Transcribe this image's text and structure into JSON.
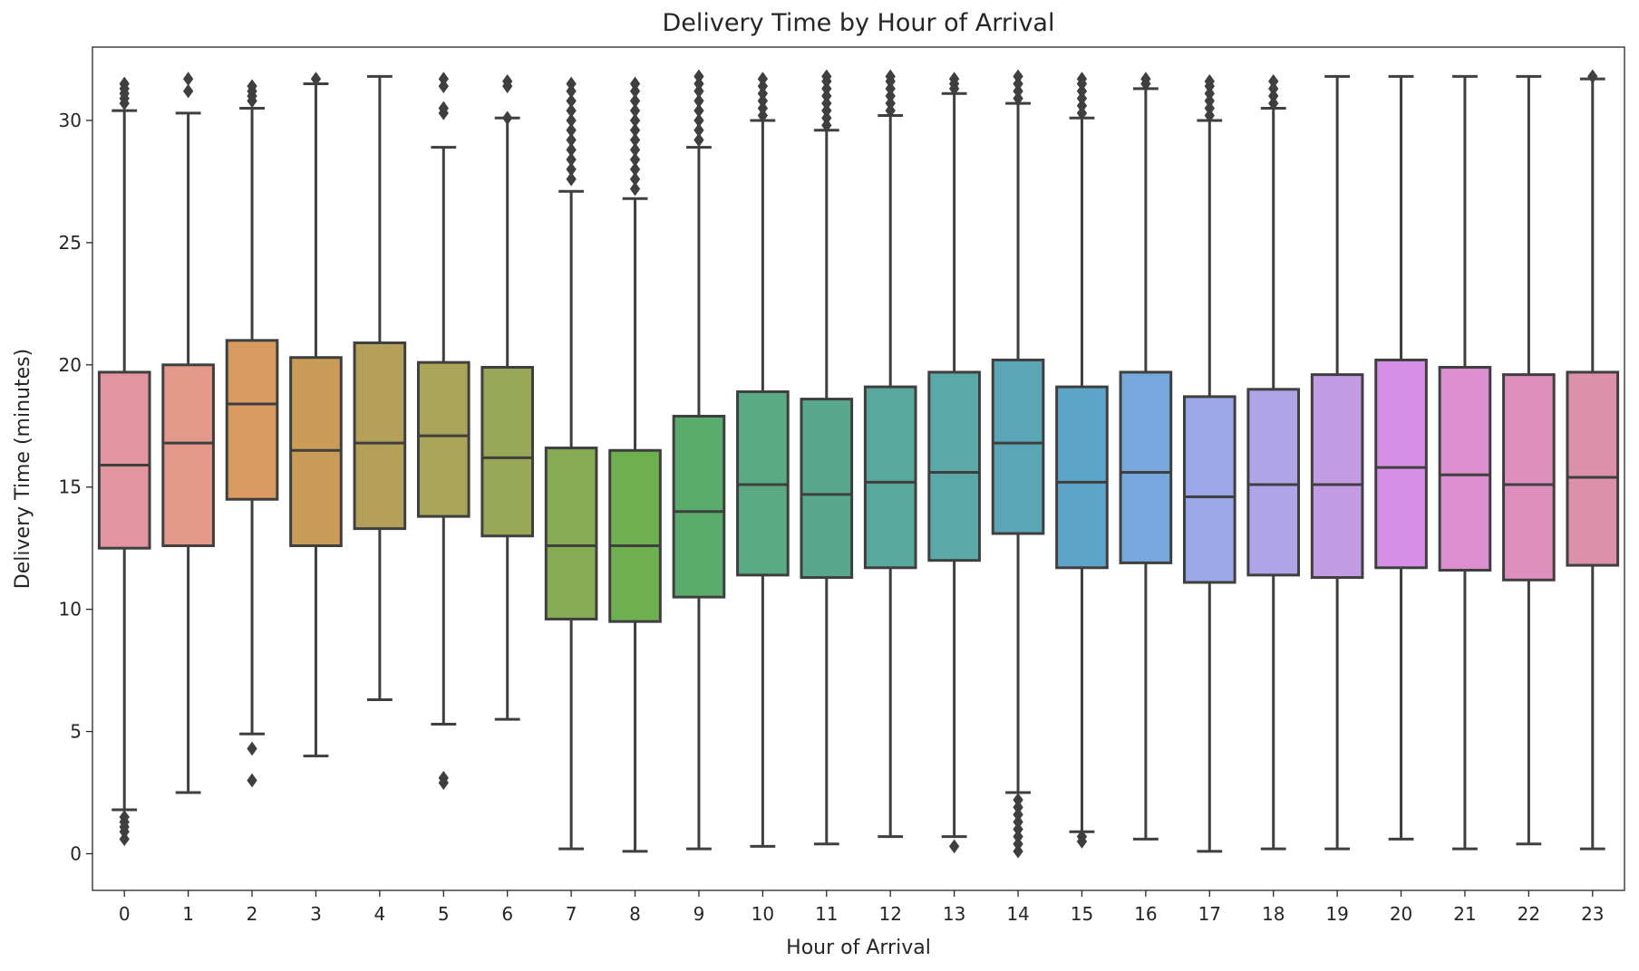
{
  "chart_data": {
    "type": "box",
    "title": "Delivery Time by Hour of Arrival",
    "xlabel": "Hour of Arrival",
    "ylabel": "Delivery Time (minutes)",
    "ylim": [
      -1.5,
      33
    ],
    "yticks": [
      0,
      5,
      10,
      15,
      20,
      25,
      30
    ],
    "categories": [
      "0",
      "1",
      "2",
      "3",
      "4",
      "5",
      "6",
      "7",
      "8",
      "9",
      "10",
      "11",
      "12",
      "13",
      "14",
      "15",
      "16",
      "17",
      "18",
      "19",
      "20",
      "21",
      "22",
      "23"
    ],
    "boxes": [
      {
        "category": "0",
        "color": "#e1959f",
        "whisker_low": 1.8,
        "q1": 12.5,
        "median": 15.9,
        "q3": 19.7,
        "whisker_high": 30.4,
        "outliers": [
          0.6,
          0.9,
          1.1,
          1.3,
          1.5,
          30.7,
          30.9,
          31.1,
          31.3,
          31.5
        ]
      },
      {
        "category": "1",
        "color": "#e49a8a",
        "whisker_low": 2.5,
        "q1": 12.6,
        "median": 16.8,
        "q3": 20.0,
        "whisker_high": 30.3,
        "outliers": [
          31.2,
          31.7
        ]
      },
      {
        "category": "2",
        "color": "#d99a60",
        "whisker_low": 4.9,
        "q1": 14.5,
        "median": 18.4,
        "q3": 21.0,
        "whisker_high": 30.5,
        "outliers": [
          3.0,
          4.3,
          30.8,
          31.0,
          31.2,
          31.4
        ]
      },
      {
        "category": "3",
        "color": "#ca9c57",
        "whisker_low": 4.0,
        "q1": 12.6,
        "median": 16.5,
        "q3": 20.3,
        "whisker_high": 31.5,
        "outliers": [
          31.7
        ]
      },
      {
        "category": "4",
        "color": "#b5a05a",
        "whisker_low": 6.3,
        "q1": 13.3,
        "median": 16.8,
        "q3": 20.9,
        "whisker_high": 31.8,
        "outliers": []
      },
      {
        "category": "5",
        "color": "#aaa458",
        "whisker_low": 5.3,
        "q1": 13.8,
        "median": 17.1,
        "q3": 20.1,
        "whisker_high": 28.9,
        "outliers": [
          2.9,
          3.1,
          30.3,
          30.5,
          31.4,
          31.7
        ]
      },
      {
        "category": "6",
        "color": "#98a857",
        "whisker_low": 5.5,
        "q1": 13.0,
        "median": 16.2,
        "q3": 19.9,
        "whisker_high": 30.1,
        "outliers": [
          30.1,
          31.4,
          31.6
        ]
      },
      {
        "category": "7",
        "color": "#87ab52",
        "whisker_low": 0.2,
        "q1": 9.6,
        "median": 12.6,
        "q3": 16.6,
        "whisker_high": 27.1,
        "outliers": [
          27.6,
          28.0,
          28.4,
          28.8,
          29.2,
          29.6,
          30.0,
          30.4,
          30.8,
          31.2,
          31.5
        ]
      },
      {
        "category": "8",
        "color": "#6eaf4f",
        "whisker_low": 0.1,
        "q1": 9.5,
        "median": 12.6,
        "q3": 16.5,
        "whisker_high": 26.8,
        "outliers": [
          27.2,
          27.6,
          28.0,
          28.4,
          28.8,
          29.2,
          29.6,
          30.0,
          30.4,
          30.8,
          31.2,
          31.5
        ]
      },
      {
        "category": "9",
        "color": "#5aab6c",
        "whisker_low": 0.2,
        "q1": 10.5,
        "median": 14.0,
        "q3": 17.9,
        "whisker_high": 28.9,
        "outliers": [
          29.2,
          29.6,
          30.0,
          30.4,
          30.8,
          31.2,
          31.5,
          31.8
        ]
      },
      {
        "category": "10",
        "color": "#5aaa83",
        "whisker_low": 0.3,
        "q1": 11.4,
        "median": 15.1,
        "q3": 18.9,
        "whisker_high": 30.0,
        "outliers": [
          30.2,
          30.5,
          30.8,
          31.1,
          31.4,
          31.7
        ]
      },
      {
        "category": "11",
        "color": "#58a88d",
        "whisker_low": 0.4,
        "q1": 11.3,
        "median": 14.7,
        "q3": 18.6,
        "whisker_high": 29.6,
        "outliers": [
          29.8,
          30.1,
          30.4,
          30.7,
          31.0,
          31.3,
          31.6,
          31.8
        ]
      },
      {
        "category": "12",
        "color": "#58a99c",
        "whisker_low": 0.7,
        "q1": 11.7,
        "median": 15.2,
        "q3": 19.1,
        "whisker_high": 30.2,
        "outliers": [
          30.4,
          30.7,
          31.0,
          31.3,
          31.6,
          31.8
        ]
      },
      {
        "category": "13",
        "color": "#5aa8a8",
        "whisker_low": 0.7,
        "q1": 12.0,
        "median": 15.6,
        "q3": 19.7,
        "whisker_high": 31.1,
        "outliers": [
          0.3,
          31.3,
          31.5,
          31.7
        ]
      },
      {
        "category": "14",
        "color": "#5aa6b7",
        "whisker_low": 2.5,
        "q1": 13.1,
        "median": 16.8,
        "q3": 20.2,
        "whisker_high": 30.7,
        "outliers": [
          0.1,
          0.4,
          0.7,
          1.0,
          1.3,
          1.6,
          1.9,
          2.2,
          30.9,
          31.2,
          31.5,
          31.8
        ]
      },
      {
        "category": "15",
        "color": "#5ea6c9",
        "whisker_low": 0.9,
        "q1": 11.7,
        "median": 15.2,
        "q3": 19.1,
        "whisker_high": 30.1,
        "outliers": [
          0.5,
          0.7,
          30.3,
          30.6,
          30.9,
          31.2,
          31.5,
          31.7
        ]
      },
      {
        "category": "16",
        "color": "#76a8dd",
        "whisker_low": 0.6,
        "q1": 11.9,
        "median": 15.6,
        "q3": 19.7,
        "whisker_high": 31.3,
        "outliers": [
          31.5,
          31.7
        ]
      },
      {
        "category": "17",
        "color": "#9aa8e8",
        "whisker_low": 0.1,
        "q1": 11.1,
        "median": 14.6,
        "q3": 18.7,
        "whisker_high": 30.0,
        "outliers": [
          30.2,
          30.5,
          30.8,
          31.1,
          31.4,
          31.6
        ]
      },
      {
        "category": "18",
        "color": "#afa4e8",
        "whisker_low": 0.2,
        "q1": 11.4,
        "median": 15.1,
        "q3": 19.0,
        "whisker_high": 30.5,
        "outliers": [
          30.7,
          31.0,
          31.3,
          31.6
        ]
      },
      {
        "category": "19",
        "color": "#c49ce6",
        "whisker_low": 0.2,
        "q1": 11.3,
        "median": 15.1,
        "q3": 19.6,
        "whisker_high": 31.8,
        "outliers": []
      },
      {
        "category": "20",
        "color": "#d590e6",
        "whisker_low": 0.6,
        "q1": 11.7,
        "median": 15.8,
        "q3": 20.2,
        "whisker_high": 31.8,
        "outliers": []
      },
      {
        "category": "21",
        "color": "#dc8fcf",
        "whisker_low": 0.2,
        "q1": 11.6,
        "median": 15.5,
        "q3": 19.9,
        "whisker_high": 31.8,
        "outliers": []
      },
      {
        "category": "22",
        "color": "#dd8fbd",
        "whisker_low": 0.4,
        "q1": 11.2,
        "median": 15.1,
        "q3": 19.6,
        "whisker_high": 31.8,
        "outliers": []
      },
      {
        "category": "23",
        "color": "#dd90aa",
        "whisker_low": 0.2,
        "q1": 11.8,
        "median": 15.4,
        "q3": 19.7,
        "whisker_high": 31.7,
        "outliers": [
          31.8
        ]
      }
    ],
    "grid": false,
    "legend": "none",
    "line_color": "#3f3f3f"
  }
}
